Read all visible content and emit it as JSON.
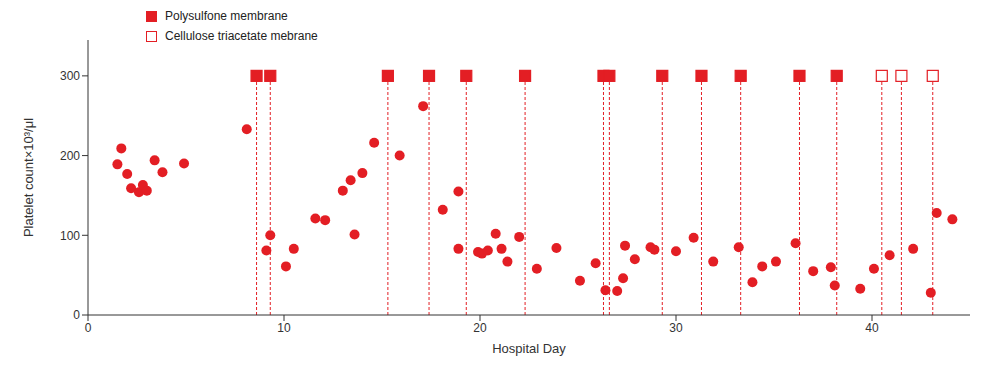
{
  "chart_data": {
    "type": "scatter",
    "x_label": "Hospital Day",
    "y_label": "Platelet count×10³/μl",
    "xlim": [
      0,
      45
    ],
    "xticks": [
      0,
      10,
      20,
      30,
      40
    ],
    "ylim": [
      0,
      345
    ],
    "yticks": [
      0,
      100,
      200,
      300
    ],
    "series": [
      {
        "color": "#e31e24",
        "marker": "circle",
        "x": [
          1.5,
          1.7,
          2.0,
          2.2,
          2.6,
          2.8,
          3.0,
          3.4,
          3.8,
          4.9,
          8.1,
          9.1,
          9.3,
          10.1,
          10.5,
          11.6,
          12.1,
          13.0,
          13.4,
          13.6,
          14.0,
          14.6,
          15.9,
          17.1,
          18.1,
          18.9,
          18.9,
          19.9,
          20.1,
          20.4,
          20.8,
          21.1,
          21.4,
          22.0,
          22.9,
          23.9,
          25.1,
          25.9,
          26.4,
          27.0,
          27.3,
          27.4,
          27.9,
          28.7,
          28.9,
          30.0,
          30.9,
          31.9,
          33.2,
          33.9,
          34.4,
          35.1,
          36.1,
          37.0,
          37.9,
          38.1,
          39.4,
          40.1,
          40.9,
          42.1,
          43.0,
          43.3,
          44.1
        ],
        "values": [
          189,
          209,
          177,
          159,
          154,
          163,
          156,
          194,
          179,
          190,
          233,
          81,
          100,
          61,
          83,
          121,
          119,
          156,
          169,
          101,
          178,
          216,
          200,
          262,
          132,
          155,
          83,
          79,
          77,
          81,
          102,
          83,
          67,
          98,
          58,
          84,
          43,
          65,
          31,
          30,
          46,
          87,
          70,
          85,
          82,
          80,
          97,
          67,
          85,
          41,
          61,
          67,
          90,
          55,
          60,
          37,
          33,
          58,
          75,
          83,
          28,
          128,
          120
        ]
      },
      {
        "name": "Polysulfone membrane",
        "color": "#e31e24",
        "marker": "square",
        "line_style": "dashed",
        "x": [
          8.6,
          9.3,
          15.3,
          17.4,
          19.3,
          22.3,
          26.3,
          26.6,
          29.3,
          31.3,
          33.3,
          36.3,
          38.2
        ],
        "values": [
          300,
          300,
          300,
          300,
          300,
          300,
          300,
          300,
          300,
          300,
          300,
          300,
          300
        ]
      },
      {
        "name": "Cellulose triacetate mebrane",
        "color": "#e31e24",
        "marker": "open_square",
        "line_style": "dashed",
        "x": [
          40.5,
          41.5,
          43.1
        ],
        "values": [
          300,
          300,
          300
        ]
      }
    ]
  }
}
